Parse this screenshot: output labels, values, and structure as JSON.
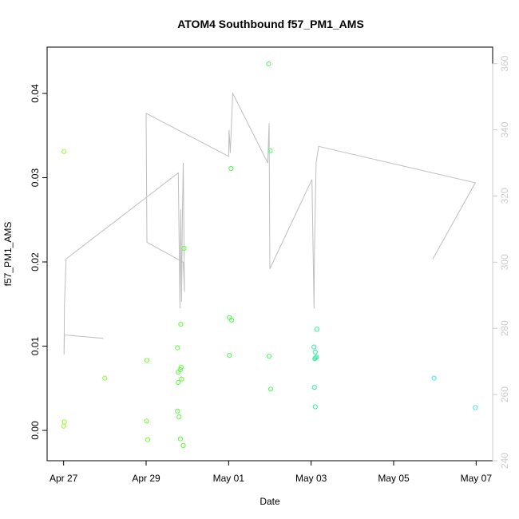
{
  "chart_data": {
    "type": "scatter",
    "title": "ATOM4 Southbound f57_PM1_AMS",
    "xlabel": "Date",
    "ylabel": "f57_PM1_AMS",
    "x_tick_labels": [
      "Apr 27",
      "Apr 29",
      "May 01",
      "May 03",
      "May 05",
      "May 07"
    ],
    "x_tick_days": [
      0,
      2,
      4,
      6,
      8,
      10
    ],
    "x_range_days": [
      -0.4,
      10.4
    ],
    "y_ticks": [
      "0.00",
      "0.01",
      "0.02",
      "0.03",
      "0.04"
    ],
    "y_tick_values": [
      0.0,
      0.01,
      0.02,
      0.03,
      0.04
    ],
    "y_range": [
      -0.0036,
      0.0455
    ],
    "y2_ticks": [
      "240",
      "260",
      "280",
      "300",
      "320",
      "340",
      "360"
    ],
    "y2_tick_values": [
      240,
      260,
      280,
      300,
      320,
      340,
      360
    ],
    "y2_range": [
      240,
      365
    ],
    "colors": {
      "line": "#bebebe",
      "axis": "#000000",
      "right_axis": "#cccccc"
    },
    "series": [
      {
        "type": "scatter",
        "points": [
          {
            "day": 0.01,
            "value": 0.0331,
            "color": "#96ff32"
          },
          {
            "day": 0.0,
            "value": 0.0005,
            "color": "#96ff32"
          },
          {
            "day": 0.02,
            "value": 0.001,
            "color": "#96ff32"
          },
          {
            "day": 1.0,
            "value": 0.0062,
            "color": "#82ff32"
          },
          {
            "day": 2.02,
            "value": 0.0083,
            "color": "#6eff32"
          },
          {
            "day": 2.01,
            "value": 0.0011,
            "color": "#6eff32"
          },
          {
            "day": 2.04,
            "value": -0.0011,
            "color": "#6eff32"
          },
          {
            "day": 2.76,
            "value": 0.0098,
            "color": "#5aff32"
          },
          {
            "day": 2.76,
            "value": 0.0023,
            "color": "#5aff32"
          },
          {
            "day": 2.78,
            "value": 0.0069,
            "color": "#5aff32"
          },
          {
            "day": 2.78,
            "value": 0.0057,
            "color": "#5aff32"
          },
          {
            "day": 2.8,
            "value": 0.0016,
            "color": "#5aff32"
          },
          {
            "day": 2.83,
            "value": 0.0072,
            "color": "#5aff32"
          },
          {
            "day": 2.85,
            "value": 0.0075,
            "color": "#5aff32"
          },
          {
            "day": 2.84,
            "value": 0.0126,
            "color": "#5aff32"
          },
          {
            "day": 2.86,
            "value": 0.0061,
            "color": "#5aff32"
          },
          {
            "day": 2.83,
            "value": -0.001,
            "color": "#5aff32"
          },
          {
            "day": 2.9,
            "value": -0.0018,
            "color": "#5aff32"
          },
          {
            "day": 2.92,
            "value": 0.0216,
            "color": "#5aff32"
          },
          {
            "day": 4.02,
            "value": 0.0134,
            "color": "#46ff46"
          },
          {
            "day": 4.07,
            "value": 0.0131,
            "color": "#46ff46"
          },
          {
            "day": 4.02,
            "value": 0.0089,
            "color": "#46ff46"
          },
          {
            "day": 4.06,
            "value": 0.0311,
            "color": "#46ff46"
          },
          {
            "day": 4.97,
            "value": 0.0435,
            "color": "#46ff5a"
          },
          {
            "day": 5.01,
            "value": 0.0332,
            "color": "#46ff5a"
          },
          {
            "day": 4.98,
            "value": 0.0088,
            "color": "#46ff5a"
          },
          {
            "day": 5.02,
            "value": 0.0049,
            "color": "#46ff5a"
          },
          {
            "day": 6.07,
            "value": 0.0099,
            "color": "#32f0a0"
          },
          {
            "day": 6.1,
            "value": 0.0093,
            "color": "#32f0a0"
          },
          {
            "day": 6.09,
            "value": 0.0085,
            "color": "#32f0a0"
          },
          {
            "day": 6.11,
            "value": 0.0086,
            "color": "#32f0a0"
          },
          {
            "day": 6.13,
            "value": 0.0087,
            "color": "#32f0a0"
          },
          {
            "day": 6.14,
            "value": 0.012,
            "color": "#32f0a0"
          },
          {
            "day": 6.08,
            "value": 0.0051,
            "color": "#32f0a0"
          },
          {
            "day": 6.1,
            "value": 0.0028,
            "color": "#32f0a0"
          },
          {
            "day": 8.98,
            "value": 0.0062,
            "color": "#46e6e6"
          },
          {
            "day": 9.98,
            "value": 0.0027,
            "color": "#46e6e6"
          }
        ]
      },
      {
        "type": "line",
        "axis": "right",
        "points": [
          [
            0.96,
            277
          ],
          [
            0.02,
            278
          ],
          [
            0.01,
            272
          ],
          [
            0.02,
            287
          ],
          [
            0.06,
            301
          ],
          [
            2.78,
            327
          ],
          [
            2.82,
            286
          ],
          [
            2.84,
            316
          ],
          [
            2.86,
            288
          ],
          [
            2.88,
            316
          ],
          [
            2.9,
            330
          ],
          [
            2.93,
            291
          ],
          [
            2.9,
            300
          ],
          [
            2.02,
            306
          ],
          [
            2.0,
            345
          ],
          [
            4.0,
            332
          ],
          [
            4.01,
            340
          ],
          [
            4.04,
            333
          ],
          [
            4.1,
            351
          ],
          [
            4.95,
            330
          ],
          [
            4.98,
            342
          ],
          [
            5.0,
            298
          ],
          [
            6.02,
            325
          ],
          [
            6.07,
            286
          ],
          [
            6.08,
            303
          ],
          [
            6.12,
            330
          ],
          [
            6.18,
            335
          ],
          [
            9.98,
            324
          ],
          [
            8.95,
            301
          ]
        ]
      }
    ]
  }
}
